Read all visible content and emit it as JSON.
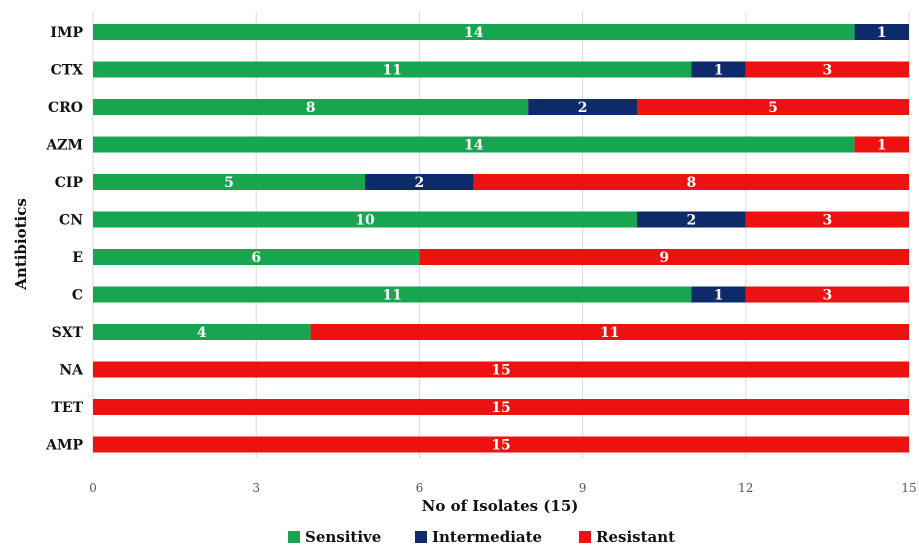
{
  "chart_data": {
    "type": "bar",
    "orientation": "horizontal",
    "stacked": true,
    "categories": [
      "IMP",
      "CTX",
      "CRO",
      "AZM",
      "CIP",
      "CN",
      "E",
      "C",
      "SXT",
      "NA",
      "TET",
      "AMP"
    ],
    "series": [
      {
        "name": "Sensitive",
        "color": "#18a550",
        "values": [
          14,
          11,
          8,
          14,
          5,
          10,
          6,
          11,
          4,
          0,
          0,
          0
        ]
      },
      {
        "name": "Intermediate",
        "color": "#0d2a6b",
        "values": [
          1,
          1,
          2,
          0,
          2,
          2,
          0,
          1,
          0,
          0,
          0,
          0
        ]
      },
      {
        "name": "Resistant",
        "color": "#ee1111",
        "values": [
          0,
          3,
          5,
          1,
          8,
          3,
          9,
          3,
          11,
          15,
          15,
          15
        ]
      }
    ],
    "xlabel": "No of Isolates (15)",
    "ylabel": "Antibiotics",
    "xlim": [
      0,
      15
    ],
    "xticks": [
      0,
      3,
      6,
      9,
      12,
      15
    ],
    "grid": "vertical",
    "legend_position": "bottom",
    "data_labels": true
  }
}
